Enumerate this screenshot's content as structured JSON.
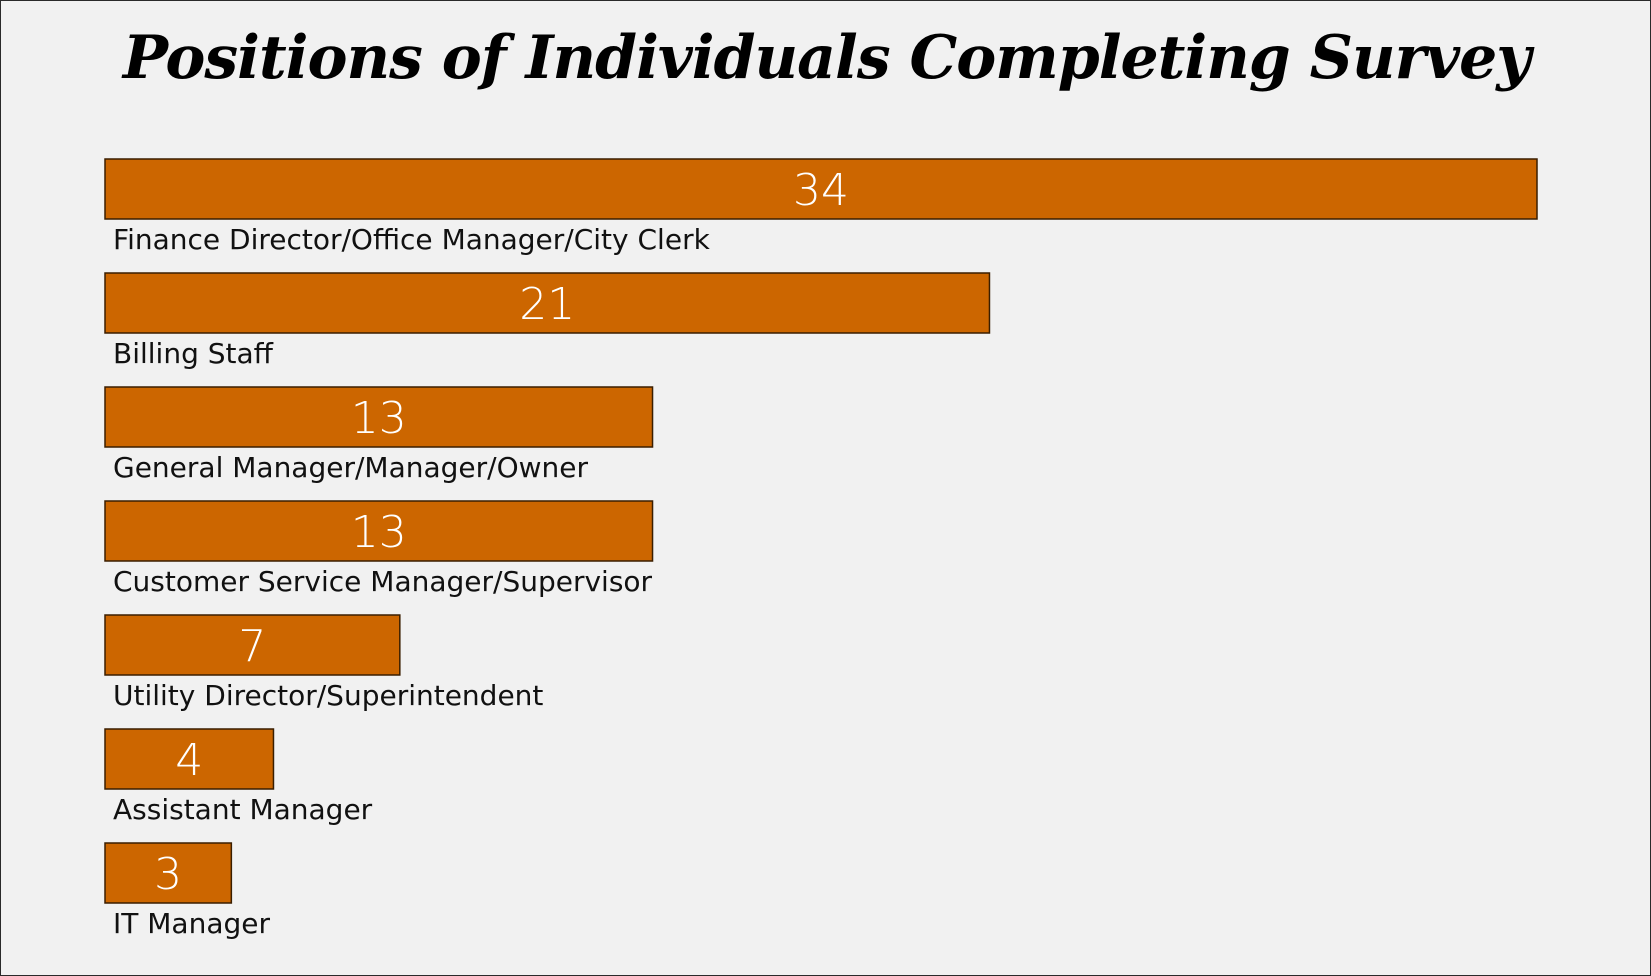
{
  "chart_data": {
    "type": "bar",
    "orientation": "horizontal",
    "title": "Positions of Individuals Completing Survey",
    "categories": [
      "Finance Director/Office Manager/City Clerk",
      "Billing Staff",
      "General Manager/Manager/Owner",
      "Customer Service Manager/Supervisor",
      "Utility Director/Superintendent",
      "Assistant Manager",
      "IT Manager"
    ],
    "values": [
      34,
      21,
      13,
      13,
      7,
      4,
      3
    ],
    "value_labels": [
      "34",
      "21",
      "13",
      "13",
      "7",
      "4",
      "3"
    ],
    "xlim": [
      0,
      34
    ],
    "grid": false,
    "legend": "none",
    "colors": {
      "bar": "#cc6600",
      "bar_border": "#3a1e00",
      "value_text": "#ffffff",
      "background": "#f1f1f1"
    }
  }
}
